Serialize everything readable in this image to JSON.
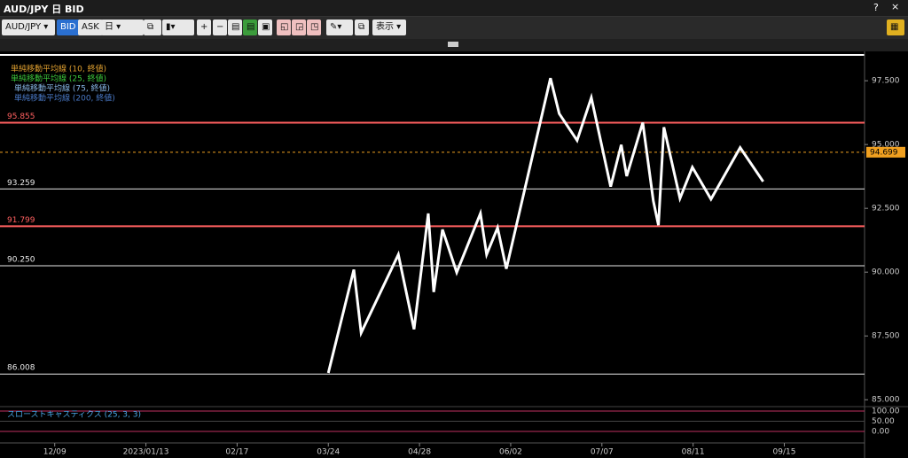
{
  "window": {
    "title": "AUD/JPY 日 BID",
    "help": "?"
  },
  "toolbar": {
    "symbol": "AUD/JPY",
    "bid": "BID",
    "ask": "ASK",
    "period": "日",
    "display": "表示"
  },
  "chart_data": {
    "type": "line",
    "legend": [
      {
        "name": "単純移動平均線 (10, 終値)",
        "color": "#e0a030"
      },
      {
        "name": "単純移動平均線 (25, 終値)",
        "color": "#3cc83c"
      },
      {
        "name": "単純移動平均線 (75, 終値)",
        "color": "#88b8e8"
      },
      {
        "name": "単純移動平均線 (200, 終値)",
        "color": "#4a7ac8"
      }
    ],
    "xlim": [
      -15,
      222
    ],
    "xticks": [
      {
        "value": 0,
        "label": "12/09"
      },
      {
        "value": 25,
        "label": "2023/01/13"
      },
      {
        "value": 50,
        "label": "02/17"
      },
      {
        "value": 75,
        "label": "03/24"
      },
      {
        "value": 100,
        "label": "04/28"
      },
      {
        "value": 125,
        "label": "06/02"
      },
      {
        "value": 150,
        "label": "07/07"
      },
      {
        "value": 175,
        "label": "08/11"
      },
      {
        "value": 200,
        "label": "09/15"
      }
    ],
    "ylim": [
      84.8,
      98.65
    ],
    "yticks": [
      {
        "value": 85,
        "label": "85.000"
      },
      {
        "value": 87.5,
        "label": "87.500"
      },
      {
        "value": 90,
        "label": "90.000"
      },
      {
        "value": 92.5,
        "label": "92.500"
      },
      {
        "value": 95,
        "label": "95.000"
      },
      {
        "value": 97.5,
        "label": "97.500"
      }
    ],
    "levels": [
      {
        "value": 95.855,
        "label": "95.855",
        "color": "#ff6060"
      },
      {
        "value": 93.259,
        "label": "93.259",
        "color": "#e8e8e8"
      },
      {
        "value": 91.799,
        "label": "91.799",
        "color": "#ff6060"
      },
      {
        "value": 90.25,
        "label": "90.250",
        "color": "#e8e8e8"
      },
      {
        "value": 86.008,
        "label": "86.008",
        "color": "#e8e8e8"
      }
    ],
    "last_price": {
      "value": 94.699,
      "label": "94.699",
      "color": "#f0a020"
    },
    "series": [
      {
        "color": "#ffffff",
        "x": [
          75,
          82,
          84,
          94.2,
          98.5,
          102.4,
          103.9,
          106.3,
          110.2,
          116.7,
          118.4,
          121.4,
          123.8,
          135.9,
          138.3,
          143.2,
          147.1,
          152.4,
          155.3,
          156.8,
          161.2,
          164.1,
          165.5,
          167,
          171.4,
          174.8,
          179.9,
          187.9,
          194.2
        ],
        "values": [
          86.05,
          90.1,
          87.62,
          90.69,
          87.76,
          92.3,
          89.22,
          91.67,
          89.99,
          92.3,
          90.69,
          91.74,
          90.13,
          97.6,
          96.21,
          95.16,
          96.84,
          93.35,
          94.99,
          93.76,
          95.86,
          92.79,
          91.84,
          95.68,
          92.89,
          94.11,
          92.86,
          94.88,
          93.55
        ]
      }
    ],
    "oscillator": {
      "name": "スローストキャスティクス (25, 3, 3)",
      "ylim": [
        0,
        100
      ],
      "yticks": [
        {
          "value": 0,
          "label": "0.00"
        },
        {
          "value": 50,
          "label": "50.00"
        },
        {
          "value": 100,
          "label": "100.00"
        }
      ]
    }
  }
}
